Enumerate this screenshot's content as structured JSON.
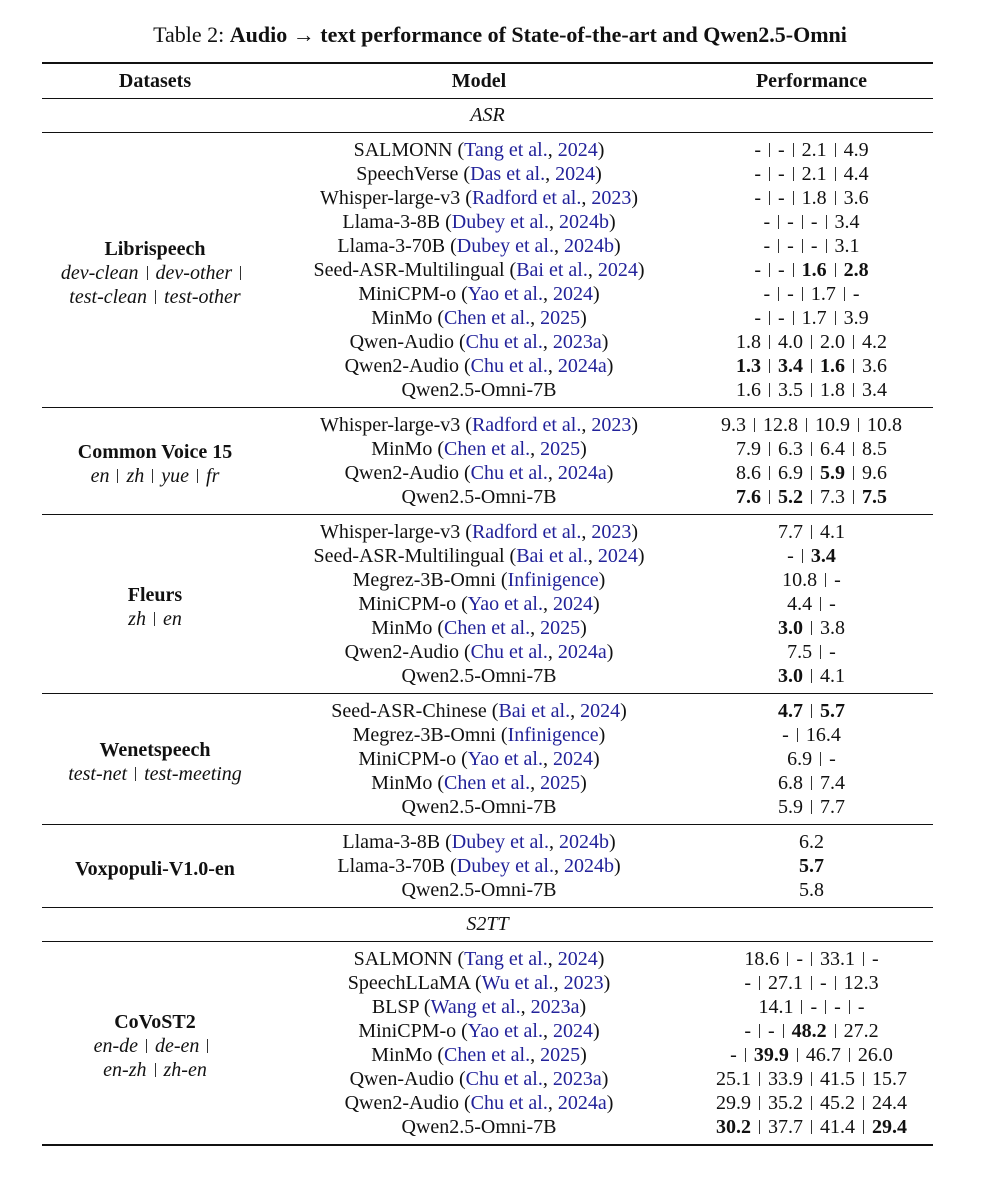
{
  "caption": {
    "label": "Table 2:",
    "text": "Audio → text performance of State-of-the-art and Qwen2.5-Omni"
  },
  "table": {
    "header": [
      "Datasets",
      "Model",
      "Performance"
    ],
    "sections": [
      {
        "title": "ASR",
        "groups": [
          {
            "dataset": {
              "name": "Librispeech",
              "subsets": [
                [
                  "dev-clean",
                  "dev-other"
                ],
                [
                  "test-clean",
                  "test-other"
                ]
              ]
            },
            "rows": [
              {
                "model": [
                  "SALMONN (",
                  "Tang et al.",
                  ", ",
                  "2024",
                  ")"
                ],
                "perf": [
                  "-",
                  "-",
                  "2.1",
                  "4.9"
                ],
                "bold": []
              },
              {
                "model": [
                  "SpeechVerse (",
                  "Das et al.",
                  ", ",
                  "2024",
                  ")"
                ],
                "perf": [
                  "-",
                  "-",
                  "2.1",
                  "4.4"
                ],
                "bold": []
              },
              {
                "model": [
                  "Whisper-large-v3 (",
                  "Radford et al.",
                  ", ",
                  "2023",
                  ")"
                ],
                "perf": [
                  "-",
                  "-",
                  "1.8",
                  "3.6"
                ],
                "bold": []
              },
              {
                "model": [
                  "Llama-3-8B (",
                  "Dubey et al.",
                  ", ",
                  "2024b",
                  ")"
                ],
                "perf": [
                  "-",
                  "-",
                  "-",
                  "3.4"
                ],
                "bold": []
              },
              {
                "model": [
                  "Llama-3-70B (",
                  "Dubey et al.",
                  ", ",
                  "2024b",
                  ")"
                ],
                "perf": [
                  "-",
                  "-",
                  "-",
                  "3.1"
                ],
                "bold": []
              },
              {
                "model": [
                  "Seed-ASR-Multilingual (",
                  "Bai et al.",
                  ", ",
                  "2024",
                  ")"
                ],
                "perf": [
                  "-",
                  "-",
                  "1.6",
                  "2.8"
                ],
                "bold": [
                  2,
                  3
                ]
              },
              {
                "model": [
                  "MiniCPM-o (",
                  "Yao et al.",
                  ", ",
                  "2024",
                  ")"
                ],
                "perf": [
                  "-",
                  "-",
                  "1.7",
                  "-"
                ],
                "bold": []
              },
              {
                "model": [
                  "MinMo (",
                  "Chen et al.",
                  ", ",
                  "2025",
                  ")"
                ],
                "perf": [
                  "-",
                  "-",
                  "1.7",
                  "3.9"
                ],
                "bold": []
              },
              {
                "model": [
                  "Qwen-Audio (",
                  "Chu et al.",
                  ", ",
                  "2023a",
                  ")"
                ],
                "perf": [
                  "1.8",
                  "4.0",
                  "2.0",
                  "4.2"
                ],
                "bold": []
              },
              {
                "model": [
                  "Qwen2-Audio (",
                  "Chu et al.",
                  ", ",
                  "2024a",
                  ")"
                ],
                "perf": [
                  "1.3",
                  "3.4",
                  "1.6",
                  "3.6"
                ],
                "bold": [
                  0,
                  1,
                  2
                ]
              },
              {
                "model": [
                  "Qwen2.5-Omni-7B"
                ],
                "perf": [
                  "1.6",
                  "3.5",
                  "1.8",
                  "3.4"
                ],
                "bold": []
              }
            ]
          },
          {
            "dataset": {
              "name": "Common Voice 15",
              "subsets": [
                [
                  "en",
                  "zh",
                  "yue",
                  "fr"
                ]
              ]
            },
            "rows": [
              {
                "model": [
                  "Whisper-large-v3 (",
                  "Radford et al.",
                  ", ",
                  "2023",
                  ")"
                ],
                "perf": [
                  "9.3",
                  "12.8",
                  "10.9",
                  "10.8"
                ],
                "bold": []
              },
              {
                "model": [
                  "MinMo (",
                  "Chen et al.",
                  ", ",
                  "2025",
                  ")"
                ],
                "perf": [
                  "7.9",
                  "6.3",
                  "6.4",
                  "8.5"
                ],
                "bold": []
              },
              {
                "model": [
                  "Qwen2-Audio (",
                  "Chu et al.",
                  ", ",
                  "2024a",
                  ")"
                ],
                "perf": [
                  "8.6",
                  "6.9",
                  "5.9",
                  "9.6"
                ],
                "bold": [
                  2
                ]
              },
              {
                "model": [
                  "Qwen2.5-Omni-7B"
                ],
                "perf": [
                  "7.6",
                  "5.2",
                  "7.3",
                  "7.5"
                ],
                "bold": [
                  0,
                  1,
                  3
                ]
              }
            ]
          },
          {
            "dataset": {
              "name": "Fleurs",
              "subsets": [
                [
                  "zh",
                  "en"
                ]
              ]
            },
            "rows": [
              {
                "model": [
                  "Whisper-large-v3 (",
                  "Radford et al.",
                  ", ",
                  "2023",
                  ")"
                ],
                "perf": [
                  "7.7",
                  "4.1"
                ],
                "bold": []
              },
              {
                "model": [
                  "Seed-ASR-Multilingual (",
                  "Bai et al.",
                  ", ",
                  "2024",
                  ")"
                ],
                "perf": [
                  "-",
                  "3.4"
                ],
                "bold": [
                  1
                ]
              },
              {
                "model": [
                  "Megrez-3B-Omni (",
                  "Infinigence",
                  ")"
                ],
                "perf": [
                  "10.8",
                  "-"
                ],
                "bold": []
              },
              {
                "model": [
                  "MiniCPM-o (",
                  "Yao et al.",
                  ", ",
                  "2024",
                  ")"
                ],
                "perf": [
                  "4.4",
                  "-"
                ],
                "bold": []
              },
              {
                "model": [
                  "MinMo (",
                  "Chen et al.",
                  ", ",
                  "2025",
                  ")"
                ],
                "perf": [
                  "3.0",
                  "3.8"
                ],
                "bold": [
                  0
                ]
              },
              {
                "model": [
                  "Qwen2-Audio (",
                  "Chu et al.",
                  ", ",
                  "2024a",
                  ")"
                ],
                "perf": [
                  "7.5",
                  "-"
                ],
                "bold": []
              },
              {
                "model": [
                  "Qwen2.5-Omni-7B"
                ],
                "perf": [
                  "3.0",
                  "4.1"
                ],
                "bold": [
                  0
                ]
              }
            ]
          },
          {
            "dataset": {
              "name": "Wenetspeech",
              "subsets": [
                [
                  "test-net",
                  "test-meeting"
                ]
              ]
            },
            "rows": [
              {
                "model": [
                  "Seed-ASR-Chinese (",
                  "Bai et al.",
                  ", ",
                  "2024",
                  ")"
                ],
                "perf": [
                  "4.7",
                  "5.7"
                ],
                "bold": [
                  0,
                  1
                ]
              },
              {
                "model": [
                  "Megrez-3B-Omni (",
                  "Infinigence",
                  ")"
                ],
                "perf": [
                  "-",
                  "16.4"
                ],
                "bold": []
              },
              {
                "model": [
                  "MiniCPM-o (",
                  "Yao et al.",
                  ", ",
                  "2024",
                  ")"
                ],
                "perf": [
                  "6.9",
                  "-"
                ],
                "bold": []
              },
              {
                "model": [
                  "MinMo (",
                  "Chen et al.",
                  ", ",
                  "2025",
                  ")"
                ],
                "perf": [
                  "6.8",
                  "7.4"
                ],
                "bold": []
              },
              {
                "model": [
                  "Qwen2.5-Omni-7B"
                ],
                "perf": [
                  "5.9",
                  "7.7"
                ],
                "bold": []
              }
            ]
          },
          {
            "dataset": {
              "name": "Voxpopuli-V1.0-en",
              "subsets": []
            },
            "rows": [
              {
                "model": [
                  "Llama-3-8B (",
                  "Dubey et al.",
                  ", ",
                  "2024b",
                  ")"
                ],
                "perf": [
                  "6.2"
                ],
                "bold": []
              },
              {
                "model": [
                  "Llama-3-70B (",
                  "Dubey et al.",
                  ", ",
                  "2024b",
                  ")"
                ],
                "perf": [
                  "5.7"
                ],
                "bold": [
                  0
                ]
              },
              {
                "model": [
                  "Qwen2.5-Omni-7B"
                ],
                "perf": [
                  "5.8"
                ],
                "bold": []
              }
            ]
          }
        ]
      },
      {
        "title": "S2TT",
        "groups": [
          {
            "dataset": {
              "name": "CoVoST2",
              "subsets": [
                [
                  "en-de",
                  "de-en"
                ],
                [
                  "en-zh",
                  "zh-en"
                ]
              ]
            },
            "rows": [
              {
                "model": [
                  "SALMONN (",
                  "Tang et al.",
                  ", ",
                  "2024",
                  ")"
                ],
                "perf": [
                  "18.6",
                  "-",
                  "33.1",
                  "-"
                ],
                "bold": []
              },
              {
                "model": [
                  "SpeechLLaMA (",
                  "Wu et al.",
                  ", ",
                  "2023",
                  ")"
                ],
                "perf": [
                  "-",
                  "27.1",
                  "-",
                  "12.3"
                ],
                "bold": []
              },
              {
                "model": [
                  "BLSP (",
                  "Wang et al.",
                  ", ",
                  "2023a",
                  ")"
                ],
                "perf": [
                  "14.1",
                  "-",
                  "-",
                  "-"
                ],
                "bold": []
              },
              {
                "model": [
                  "MiniCPM-o (",
                  "Yao et al.",
                  ", ",
                  "2024",
                  ")"
                ],
                "perf": [
                  "-",
                  "-",
                  "48.2",
                  "27.2"
                ],
                "bold": [
                  2
                ]
              },
              {
                "model": [
                  "MinMo (",
                  "Chen et al.",
                  ", ",
                  "2025",
                  ")"
                ],
                "perf": [
                  "-",
                  "39.9",
                  "46.7",
                  "26.0"
                ],
                "bold": [
                  1
                ]
              },
              {
                "model": [
                  "Qwen-Audio (",
                  "Chu et al.",
                  ", ",
                  "2023a",
                  ")"
                ],
                "perf": [
                  "25.1",
                  "33.9",
                  "41.5",
                  "15.7"
                ],
                "bold": []
              },
              {
                "model": [
                  "Qwen2-Audio (",
                  "Chu et al.",
                  ", ",
                  "2024a",
                  ")"
                ],
                "perf": [
                  "29.9",
                  "35.2",
                  "45.2",
                  "24.4"
                ],
                "bold": []
              },
              {
                "model": [
                  "Qwen2.5-Omni-7B"
                ],
                "perf": [
                  "30.2",
                  "37.7",
                  "41.4",
                  "29.4"
                ],
                "bold": [
                  0,
                  3
                ]
              }
            ]
          }
        ]
      }
    ]
  }
}
